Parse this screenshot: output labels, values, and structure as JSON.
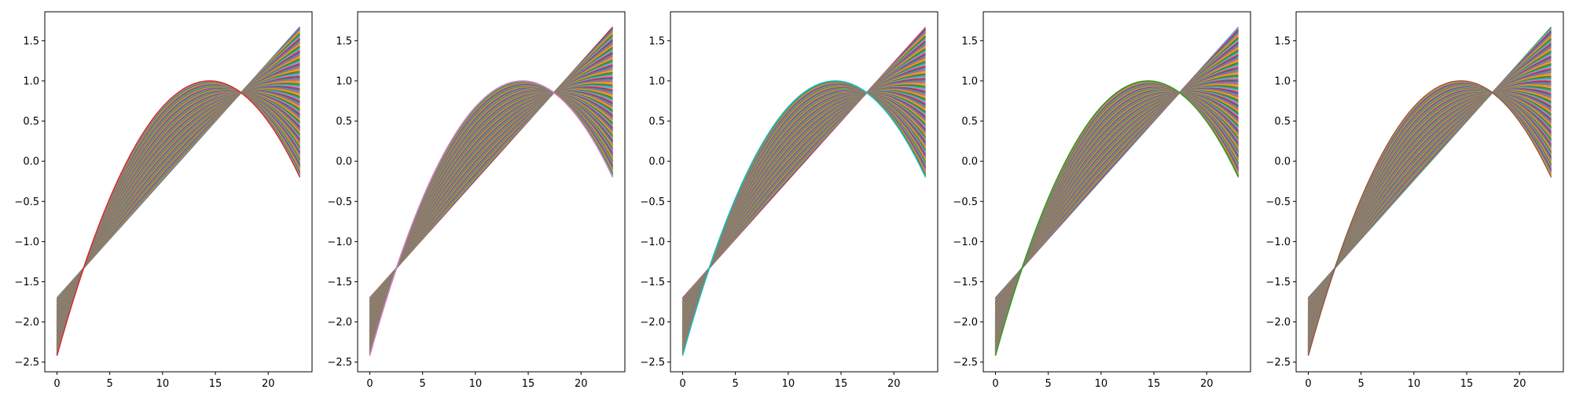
{
  "chart_data": [
    {
      "type": "line",
      "title": "",
      "xlabel": "",
      "ylabel": "",
      "xlim": [
        -1.15,
        24.15
      ],
      "ylim": [
        -2.62,
        1.86
      ],
      "x_ticks": [
        "0",
        "5",
        "10",
        "15",
        "20"
      ],
      "x_tick_values": [
        0,
        5,
        10,
        15,
        20
      ],
      "y_ticks": [
        "−2.5",
        "−2.0",
        "−1.5",
        "−1.0",
        "−0.5",
        "0.0",
        "0.5",
        "1.0",
        "1.5"
      ],
      "y_tick_values": [
        -2.5,
        -2.0,
        -1.5,
        -1.0,
        -0.5,
        0.0,
        0.5,
        1.0,
        1.5
      ],
      "x": [
        0,
        23
      ],
      "series_family": {
        "count": 120,
        "description_of_family": "quadratic curves y = b0 + b1*x + b2*x^2, interpolating from a straight line (-1.7 to 1.67) to an arc peaking at 1.0 near x=14.5 and ending at -0.2",
        "line_start_y": -1.7,
        "line_end_y": 1.67,
        "arc_start_y": -2.42,
        "arc_peak_y": 1.0,
        "arc_peak_x": 14.5,
        "arc_end_y": -0.2,
        "crossing_points": [
          [
            3.5,
            -1.12
          ],
          [
            17.6,
            0.95
          ]
        ]
      },
      "grid": false,
      "legend": "none"
    },
    {
      "type": "line",
      "same_as_panel": 1,
      "x_ticks": [
        "0",
        "5",
        "10",
        "15",
        "20"
      ],
      "y_ticks": [
        "−2.5",
        "−2.0",
        "−1.5",
        "−1.0",
        "−0.5",
        "0.0",
        "0.5",
        "1.0",
        "1.5"
      ]
    },
    {
      "type": "line",
      "same_as_panel": 1,
      "x_ticks": [
        "0",
        "5",
        "10",
        "15",
        "20"
      ],
      "y_ticks": [
        "−2.5",
        "−2.0",
        "−1.5",
        "−1.0",
        "−0.5",
        "0.0",
        "0.5",
        "1.0",
        "1.5"
      ]
    },
    {
      "type": "line",
      "same_as_panel": 1,
      "x_ticks": [
        "0",
        "5",
        "10",
        "15",
        "20"
      ],
      "y_ticks": [
        "−2.5",
        "−2.0",
        "−1.5",
        "−1.0",
        "−0.5",
        "0.0",
        "0.5",
        "1.0",
        "1.5"
      ]
    },
    {
      "type": "line",
      "same_as_panel": 1,
      "x_ticks": [
        "0",
        "5",
        "10",
        "15",
        "20"
      ],
      "y_ticks": [
        "−2.5",
        "−2.0",
        "−1.5",
        "−1.0",
        "−0.5",
        "0.0",
        "0.5",
        "1.0",
        "1.5"
      ]
    }
  ],
  "palette": [
    "#1f77b4",
    "#ff7f0e",
    "#2ca02c",
    "#d62728",
    "#9467bd",
    "#8c564b",
    "#e377c2",
    "#7f7f7f",
    "#bcbd22",
    "#17becf"
  ]
}
